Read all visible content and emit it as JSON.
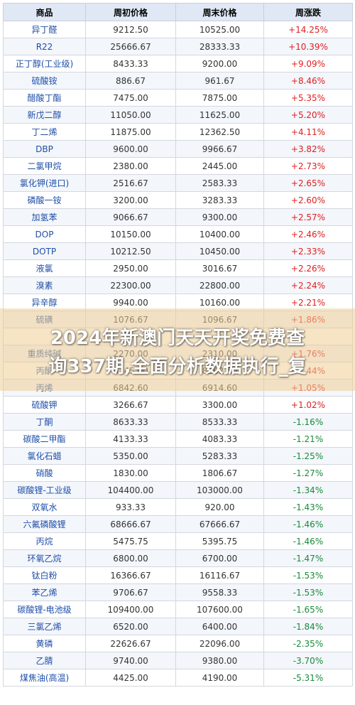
{
  "table": {
    "headers": [
      "商品",
      "周初价格",
      "周末价格",
      "周涨跌"
    ],
    "rows": [
      {
        "name": "异丁醛",
        "start": "9212.50",
        "end": "10525.00",
        "change": "+14.25%",
        "dir": "up"
      },
      {
        "name": "R22",
        "start": "25666.67",
        "end": "28333.33",
        "change": "+10.39%",
        "dir": "up"
      },
      {
        "name": "正丁醇(工业级)",
        "start": "8433.33",
        "end": "9200.00",
        "change": "+9.09%",
        "dir": "up"
      },
      {
        "name": "硫酸铵",
        "start": "886.67",
        "end": "961.67",
        "change": "+8.46%",
        "dir": "up"
      },
      {
        "name": "醋酸丁酯",
        "start": "7475.00",
        "end": "7875.00",
        "change": "+5.35%",
        "dir": "up"
      },
      {
        "name": "新戊二醇",
        "start": "11050.00",
        "end": "11625.00",
        "change": "+5.20%",
        "dir": "up"
      },
      {
        "name": "丁二烯",
        "start": "11875.00",
        "end": "12362.50",
        "change": "+4.11%",
        "dir": "up"
      },
      {
        "name": "DBP",
        "start": "9600.00",
        "end": "9966.67",
        "change": "+3.82%",
        "dir": "up"
      },
      {
        "name": "二氯甲烷",
        "start": "2380.00",
        "end": "2445.00",
        "change": "+2.73%",
        "dir": "up"
      },
      {
        "name": "氯化钾(进口)",
        "start": "2516.67",
        "end": "2583.33",
        "change": "+2.65%",
        "dir": "up"
      },
      {
        "name": "磷酸一铵",
        "start": "3200.00",
        "end": "3283.33",
        "change": "+2.60%",
        "dir": "up"
      },
      {
        "name": "加氢苯",
        "start": "9066.67",
        "end": "9300.00",
        "change": "+2.57%",
        "dir": "up"
      },
      {
        "name": "DOP",
        "start": "10150.00",
        "end": "10400.00",
        "change": "+2.46%",
        "dir": "up"
      },
      {
        "name": "DOTP",
        "start": "10212.50",
        "end": "10450.00",
        "change": "+2.33%",
        "dir": "up"
      },
      {
        "name": "液氯",
        "start": "2950.00",
        "end": "3016.67",
        "change": "+2.26%",
        "dir": "up"
      },
      {
        "name": "溴素",
        "start": "22300.00",
        "end": "22800.00",
        "change": "+2.24%",
        "dir": "up"
      },
      {
        "name": "异辛醇",
        "start": "9940.00",
        "end": "10160.00",
        "change": "+2.21%",
        "dir": "up"
      },
      {
        "name": "硫磺",
        "start": "1076.67",
        "end": "1096.67",
        "change": "+1.86%",
        "dir": "up"
      },
      {
        "name": "",
        "start": "",
        "end": "",
        "change": "",
        "dir": "up"
      },
      {
        "name": "重质纯碱",
        "start": "2270.00",
        "end": "2310.00",
        "change": "+1.76%",
        "dir": "up"
      },
      {
        "name": "丙酮",
        "start": "8145.00",
        "end": "8262.50",
        "change": "+1.44%",
        "dir": "up"
      },
      {
        "name": "丙烯",
        "start": "6842.60",
        "end": "6914.60",
        "change": "+1.05%",
        "dir": "up"
      },
      {
        "name": "硫酸钾",
        "start": "3266.67",
        "end": "3300.00",
        "change": "+1.02%",
        "dir": "up"
      },
      {
        "name": "丁酮",
        "start": "8633.33",
        "end": "8533.33",
        "change": "-1.16%",
        "dir": "down"
      },
      {
        "name": "碳酸二甲酯",
        "start": "4133.33",
        "end": "4083.33",
        "change": "-1.21%",
        "dir": "down"
      },
      {
        "name": "氯化石蜡",
        "start": "5350.00",
        "end": "5283.33",
        "change": "-1.25%",
        "dir": "down"
      },
      {
        "name": "硝酸",
        "start": "1830.00",
        "end": "1806.67",
        "change": "-1.27%",
        "dir": "down"
      },
      {
        "name": "碳酸锂-工业级",
        "start": "104400.00",
        "end": "103000.00",
        "change": "-1.34%",
        "dir": "down"
      },
      {
        "name": "双氧水",
        "start": "933.33",
        "end": "920.00",
        "change": "-1.43%",
        "dir": "down"
      },
      {
        "name": "六氟磷酸锂",
        "start": "68666.67",
        "end": "67666.67",
        "change": "-1.46%",
        "dir": "down"
      },
      {
        "name": "丙烷",
        "start": "5475.75",
        "end": "5395.75",
        "change": "-1.46%",
        "dir": "down"
      },
      {
        "name": "环氧乙烷",
        "start": "6800.00",
        "end": "6700.00",
        "change": "-1.47%",
        "dir": "down"
      },
      {
        "name": "钛白粉",
        "start": "16366.67",
        "end": "16116.67",
        "change": "-1.53%",
        "dir": "down"
      },
      {
        "name": "苯乙烯",
        "start": "9706.67",
        "end": "9558.33",
        "change": "-1.53%",
        "dir": "down"
      },
      {
        "name": "碳酸锂-电池级",
        "start": "109400.00",
        "end": "107600.00",
        "change": "-1.65%",
        "dir": "down"
      },
      {
        "name": "三氯乙烯",
        "start": "6520.00",
        "end": "6400.00",
        "change": "-1.84%",
        "dir": "down"
      },
      {
        "name": "黄磷",
        "start": "22626.67",
        "end": "22096.00",
        "change": "-2.35%",
        "dir": "down"
      },
      {
        "name": "乙腈",
        "start": "9740.00",
        "end": "9380.00",
        "change": "-3.70%",
        "dir": "down"
      },
      {
        "name": "煤焦油(高温)",
        "start": "4425.00",
        "end": "4190.00",
        "change": "-5.31%",
        "dir": "down"
      }
    ]
  },
  "banner": {
    "line1": "2024年新澳门天天开奖免费查",
    "line2": "询337期,全面分析数据执行_复"
  },
  "colors": {
    "up": "#e02020",
    "down": "#1a8a3a",
    "name": "#1f4fa8",
    "header_bg": "#dfe8f4"
  }
}
